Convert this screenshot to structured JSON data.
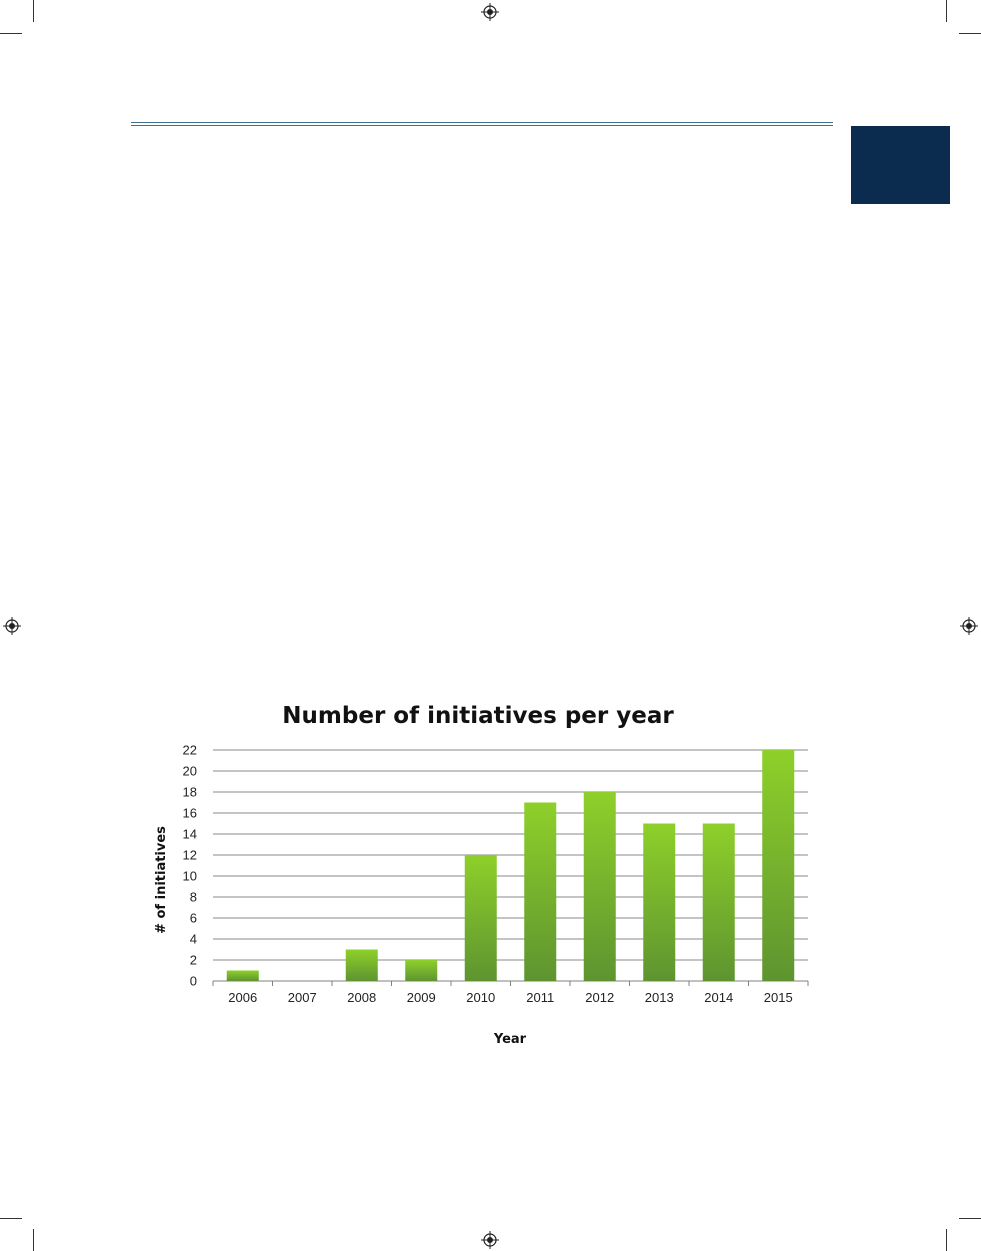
{
  "page": {
    "tab_color": "#0b2c4e",
    "rule_color": "#3f6e8a"
  },
  "chart_data": {
    "type": "bar",
    "title": "Number of initiatives per year",
    "xlabel": "Year",
    "ylabel": "# of initiatives",
    "categories": [
      "2006",
      "2007",
      "2008",
      "2009",
      "2010",
      "2011",
      "2012",
      "2013",
      "2014",
      "2015"
    ],
    "values": [
      1,
      0,
      3,
      2,
      12,
      17,
      18,
      15,
      15,
      22
    ],
    "ylim": [
      0,
      22
    ],
    "yticks": [
      0,
      2,
      4,
      6,
      8,
      10,
      12,
      14,
      16,
      18,
      20,
      22
    ],
    "grid": true,
    "legend": "none",
    "bar_color_top": "#8ed02a",
    "bar_color_bottom": "#5e9430"
  }
}
